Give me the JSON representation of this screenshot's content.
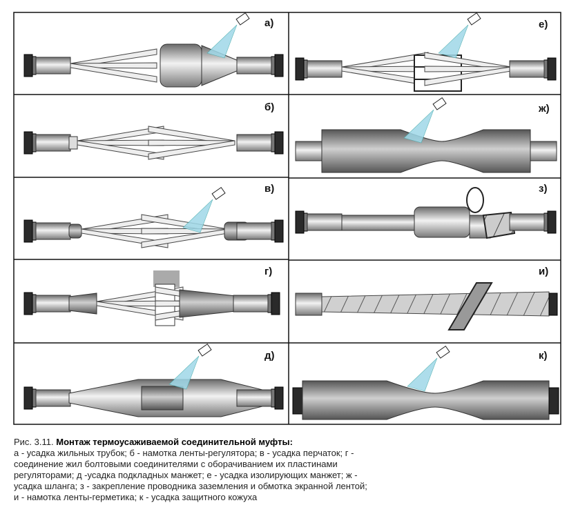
{
  "panels": [
    {
      "label": "а)"
    },
    {
      "label": "б)"
    },
    {
      "label": "в)"
    },
    {
      "label": "г)"
    },
    {
      "label": "д)"
    },
    {
      "label": "е)"
    },
    {
      "label": "ж)"
    },
    {
      "label": "з)"
    },
    {
      "label": "и)"
    },
    {
      "label": "к)"
    }
  ],
  "caption": {
    "prefix": "Рис. 3.11.",
    "title": "Монтаж термоусаживаемой соединительной муфты:",
    "lines": [
      "а - усадка жильных трубок; б - намотка ленты-регулятора; в - усадка перчаток; г -",
      "соединение жил болтовыми соединителями с оборачиванием их пластинами",
      "регуляторами; д -усадка подкладных манжет; е - усадка изолирующих манжет; ж -",
      "усадка шланга; з - закрепление проводника заземления и обмотка экранной лентой;",
      "и - намотка ленты-герметика; к - усадка защитного кожуха"
    ]
  }
}
